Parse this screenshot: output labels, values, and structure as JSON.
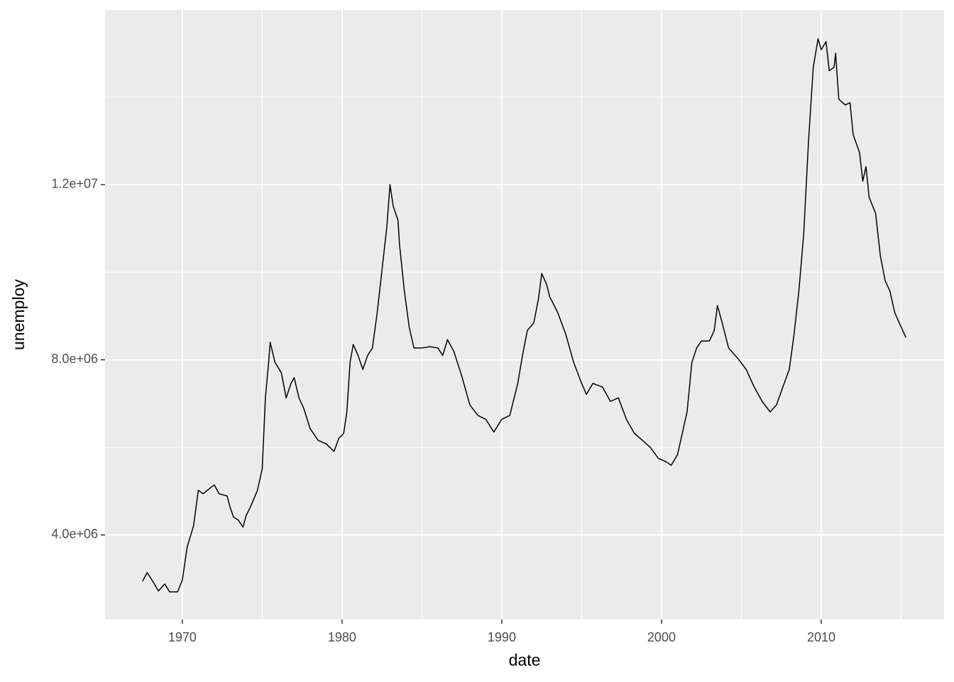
{
  "chart_data": {
    "type": "line",
    "x_label": "date",
    "y_label": "unemploy",
    "x": [
      1967.5,
      1967.8,
      1968.2,
      1968.5,
      1968.9,
      1969.2,
      1969.7,
      1970.0,
      1970.3,
      1970.7,
      1971.0,
      1971.3,
      1971.8,
      1972.0,
      1972.3,
      1972.8,
      1973.0,
      1973.2,
      1973.5,
      1973.8,
      1974.0,
      1974.3,
      1974.7,
      1975.0,
      1975.2,
      1975.4,
      1975.5,
      1975.8,
      1976.2,
      1976.5,
      1976.8,
      1977.0,
      1977.3,
      1977.6,
      1978.0,
      1978.5,
      1979.0,
      1979.5,
      1979.8,
      1980.1,
      1980.3,
      1980.5,
      1980.7,
      1981.0,
      1981.3,
      1981.6,
      1981.9,
      1982.2,
      1982.5,
      1982.8,
      1983.0,
      1983.2,
      1983.5,
      1983.6,
      1983.9,
      1984.2,
      1984.5,
      1985.0,
      1985.5,
      1986.0,
      1986.3,
      1986.6,
      1987.0,
      1987.5,
      1988.0,
      1988.5,
      1989.0,
      1989.5,
      1990.0,
      1990.5,
      1991.0,
      1991.3,
      1991.6,
      1992.0,
      1992.3,
      1992.5,
      1992.8,
      1993.0,
      1993.5,
      1994.0,
      1994.5,
      1995.0,
      1995.3,
      1995.7,
      1996.3,
      1996.8,
      1997.3,
      1997.8,
      1998.3,
      1998.8,
      1999.3,
      1999.8,
      2000.3,
      2000.6,
      2001.0,
      2001.3,
      2001.6,
      2001.9,
      2002.2,
      2002.5,
      2003.0,
      2003.3,
      2003.5,
      2003.8,
      2004.2,
      2004.8,
      2005.3,
      2005.8,
      2006.3,
      2006.8,
      2007.2,
      2007.6,
      2008.0,
      2008.3,
      2008.6,
      2008.9,
      2009.2,
      2009.5,
      2009.8,
      2010.0,
      2010.3,
      2010.5,
      2010.8,
      2010.9,
      2011.1,
      2011.5,
      2011.8,
      2012.0,
      2012.4,
      2012.6,
      2012.8,
      2013.0,
      2013.4,
      2013.7,
      2014.0,
      2014.3,
      2014.6,
      2015.0,
      2015.3
    ],
    "values": [
      2940000,
      3140000,
      2910000,
      2720000,
      2880000,
      2700000,
      2700000,
      2970000,
      3720000,
      4210000,
      5020000,
      4940000,
      5090000,
      5140000,
      4940000,
      4890000,
      4620000,
      4410000,
      4340000,
      4180000,
      4450000,
      4670000,
      5020000,
      5510000,
      7130000,
      7940000,
      8400000,
      7940000,
      7700000,
      7130000,
      7460000,
      7590000,
      7130000,
      6890000,
      6430000,
      6160000,
      6080000,
      5910000,
      6210000,
      6320000,
      6810000,
      7940000,
      8350000,
      8100000,
      7780000,
      8100000,
      8270000,
      9080000,
      10050000,
      11030000,
      12000000,
      11510000,
      11190000,
      10620000,
      9570000,
      8750000,
      8270000,
      8270000,
      8300000,
      8270000,
      8100000,
      8460000,
      8190000,
      7620000,
      6970000,
      6730000,
      6640000,
      6350000,
      6640000,
      6730000,
      7460000,
      8110000,
      8670000,
      8840000,
      9400000,
      9970000,
      9730000,
      9440000,
      9080000,
      8590000,
      7940000,
      7460000,
      7210000,
      7460000,
      7380000,
      7050000,
      7130000,
      6640000,
      6320000,
      6160000,
      6000000,
      5750000,
      5670000,
      5590000,
      5830000,
      6320000,
      6810000,
      7940000,
      8270000,
      8430000,
      8430000,
      8670000,
      9240000,
      8840000,
      8270000,
      8020000,
      7780000,
      7380000,
      7050000,
      6810000,
      6970000,
      7380000,
      7780000,
      8590000,
      9570000,
      10860000,
      12970000,
      14680000,
      15330000,
      15080000,
      15270000,
      14600000,
      14680000,
      15000000,
      13950000,
      13820000,
      13870000,
      13140000,
      12730000,
      12080000,
      12410000,
      11710000,
      11350000,
      10380000,
      9810000,
      9570000,
      9080000,
      8750000,
      8510000
    ],
    "color": "#000000",
    "xlim": [
      1965.16,
      2017.69
    ],
    "xticks": [
      1970,
      1980,
      1990,
      2000,
      2010
    ],
    "ylim": [
      2069000,
      15990000
    ],
    "yticks": [
      {
        "value": 4000000,
        "label": "4.0e+06"
      },
      {
        "value": 8000000,
        "label": "8.0e+06"
      },
      {
        "value": 12000000,
        "label": "1.2e+07"
      }
    ],
    "grid": true
  }
}
